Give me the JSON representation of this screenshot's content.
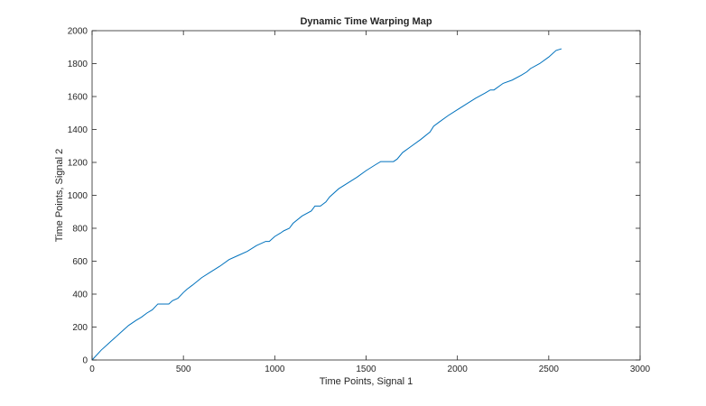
{
  "chart_data": {
    "type": "line",
    "title": "Dynamic Time Warping Map",
    "xlabel": "Time Points, Signal 1",
    "ylabel": "Time Points, Signal 2",
    "xlim": [
      0,
      3000
    ],
    "ylim": [
      0,
      2000
    ],
    "xticks": [
      0,
      500,
      1000,
      1500,
      2000,
      2500,
      3000
    ],
    "yticks": [
      0,
      200,
      400,
      600,
      800,
      1000,
      1200,
      1400,
      1600,
      1800,
      2000
    ],
    "grid": false,
    "line_color": "#0072BD",
    "series": [
      {
        "x": [
          0,
          50,
          100,
          150,
          200,
          240,
          270,
          300,
          330,
          360,
          370,
          420,
          440,
          470,
          500,
          520,
          550,
          600,
          650,
          700,
          750,
          800,
          850,
          900,
          950,
          970,
          1000,
          1030,
          1050,
          1080,
          1100,
          1150,
          1200,
          1220,
          1250,
          1280,
          1300,
          1350,
          1400,
          1450,
          1500,
          1550,
          1580,
          1600,
          1650,
          1670,
          1700,
          1750,
          1800,
          1850,
          1870,
          1900,
          1950,
          2000,
          2050,
          2100,
          2150,
          2180,
          2200,
          2250,
          2300,
          2350,
          2380,
          2400,
          2450,
          2500,
          2540,
          2570
        ],
        "y": [
          0,
          60,
          110,
          160,
          210,
          240,
          260,
          285,
          305,
          340,
          340,
          340,
          360,
          375,
          410,
          430,
          455,
          500,
          535,
          570,
          610,
          635,
          660,
          695,
          720,
          720,
          750,
          770,
          785,
          800,
          830,
          875,
          905,
          935,
          935,
          960,
          990,
          1040,
          1075,
          1110,
          1150,
          1185,
          1205,
          1205,
          1205,
          1220,
          1260,
          1300,
          1340,
          1385,
          1420,
          1445,
          1485,
          1520,
          1555,
          1590,
          1620,
          1640,
          1640,
          1680,
          1700,
          1730,
          1750,
          1770,
          1800,
          1840,
          1880,
          1890
        ]
      }
    ]
  }
}
